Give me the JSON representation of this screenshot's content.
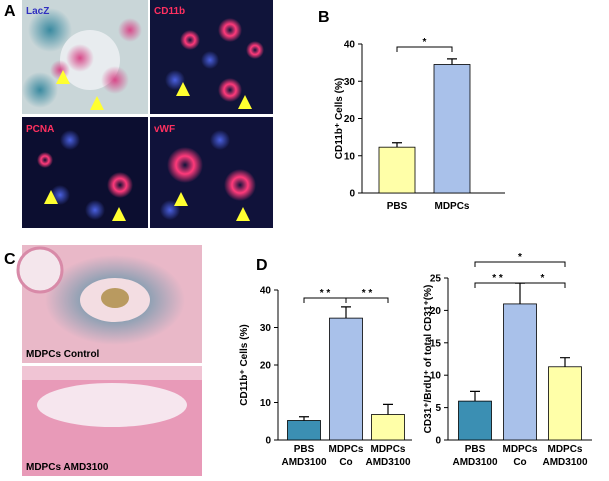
{
  "panels": [
    "A",
    "B",
    "C",
    "D"
  ],
  "images": [
    "LacZ",
    "CD11b",
    "PCNA",
    "vWF",
    "MDPCs Control",
    "MDPCs AMD3100"
  ],
  "chart_data": [
    {
      "type": "bar",
      "ylabel": "CD11b⁺ Cells (%)",
      "categories": [
        "PBS",
        "MDPCs"
      ],
      "values": [
        12.3,
        34.5
      ],
      "errors": [
        1.2,
        1.5
      ],
      "colors": [
        "#ffffa8",
        "#a9c1ea"
      ],
      "ylim": [
        0,
        40
      ],
      "yticks": [
        0,
        10,
        20,
        30,
        40
      ],
      "significance": [
        "*"
      ]
    },
    {
      "type": "bar",
      "ylabel": "CD11b⁺ Cells (%)",
      "categories": [
        "PBS AMD3100",
        "MDPCs Co",
        "MDPCs AMD3100"
      ],
      "values": [
        5.2,
        32.5,
        6.8
      ],
      "errors": [
        1,
        3,
        2.7
      ],
      "colors": [
        "#3b8fb3",
        "#a9c1ea",
        "#ffffa8"
      ],
      "ylim": [
        0,
        40
      ],
      "yticks": [
        0,
        10,
        20,
        30,
        40
      ],
      "significance": [
        "* *",
        "* *"
      ]
    },
    {
      "type": "bar",
      "ylabel": "CD31⁺/BrdU⁺ of total CD31⁺(%)",
      "categories": [
        "PBS AMD3100",
        "MDPCs Co",
        "MDPCs AMD3100"
      ],
      "values": [
        6,
        21,
        11.3
      ],
      "errors": [
        1.5,
        3.2,
        1.4
      ],
      "colors": [
        "#3b8fb3",
        "#a9c1ea",
        "#ffffa8"
      ],
      "ylim": [
        0,
        25
      ],
      "yticks": [
        0,
        5,
        10,
        15,
        20,
        25
      ],
      "significance": [
        "*",
        "* *",
        "*"
      ]
    }
  ]
}
